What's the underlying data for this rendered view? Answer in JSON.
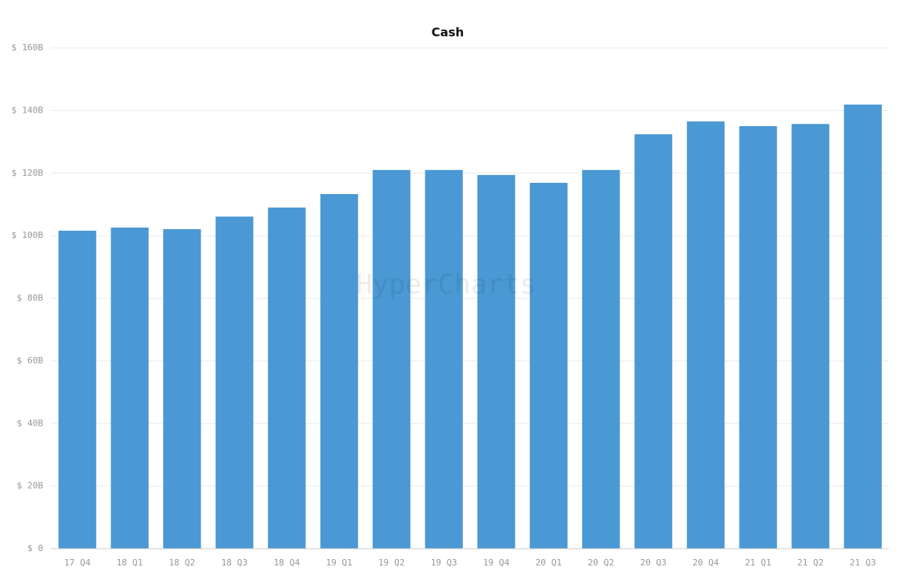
{
  "chart_data": {
    "type": "bar",
    "title": "Cash",
    "watermark": "HyperCharts",
    "categories": [
      "17 Q4",
      "18 Q1",
      "18 Q2",
      "18 Q3",
      "18 Q4",
      "19 Q1",
      "19 Q2",
      "19 Q3",
      "19 Q4",
      "20 Q1",
      "20 Q2",
      "20 Q3",
      "20 Q4",
      "21 Q1",
      "21 Q2",
      "21 Q3"
    ],
    "values": [
      101.6,
      102.6,
      102.1,
      106.1,
      109.0,
      113.3,
      121.0,
      121.0,
      119.4,
      116.9,
      121.0,
      132.4,
      136.5,
      135.0,
      135.7,
      141.9
    ],
    "color": "#4a98d4",
    "ylim": [
      0,
      160
    ],
    "yticks": [
      {
        "value": 0,
        "label": "$ 0"
      },
      {
        "value": 20,
        "label": "$ 20B"
      },
      {
        "value": 40,
        "label": "$ 40B"
      },
      {
        "value": 60,
        "label": "$ 60B"
      },
      {
        "value": 80,
        "label": "$ 80B"
      },
      {
        "value": 100,
        "label": "$ 100B"
      },
      {
        "value": 120,
        "label": "$ 120B"
      },
      {
        "value": 140,
        "label": "$ 140B"
      },
      {
        "value": 160,
        "label": "$ 160B"
      }
    ],
    "grid": true
  }
}
